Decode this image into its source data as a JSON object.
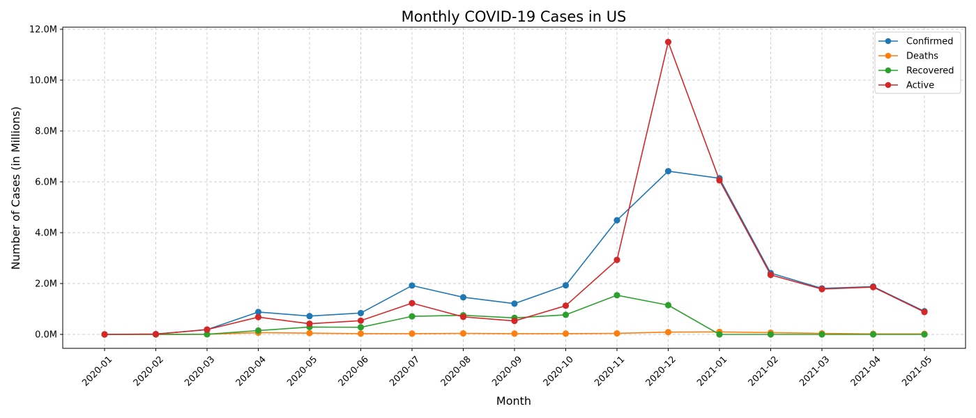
{
  "chart_data": {
    "type": "line",
    "title": "Monthly COVID-19 Cases in US",
    "xlabel": "Month",
    "ylabel": "Number of Cases (in Millions)",
    "categories": [
      "2020-01",
      "2020-02",
      "2020-03",
      "2020-04",
      "2020-05",
      "2020-06",
      "2020-07",
      "2020-08",
      "2020-09",
      "2020-10",
      "2020-11",
      "2020-12",
      "2021-01",
      "2021-02",
      "2021-03",
      "2021-04",
      "2021-05"
    ],
    "ylim": [
      -0.55,
      12.1
    ],
    "yticks": [
      0,
      2,
      4,
      6,
      8,
      10,
      12
    ],
    "ytick_labels": [
      "0.0M",
      "2.0M",
      "4.0M",
      "6.0M",
      "8.0M",
      "10.0M",
      "12.0M"
    ],
    "grid": true,
    "legend_position": "top-right",
    "marker": "circle",
    "series": [
      {
        "name": "Confirmed",
        "color": "#1f77b4",
        "values": [
          0.0,
          0.01,
          0.19,
          0.88,
          0.72,
          0.84,
          1.92,
          1.46,
          1.21,
          1.93,
          4.49,
          6.42,
          6.14,
          2.41,
          1.81,
          1.88,
          0.91
        ]
      },
      {
        "name": "Deaths",
        "color": "#ff7f0e",
        "values": [
          0.0,
          0.0,
          0.005,
          0.07,
          0.05,
          0.03,
          0.03,
          0.04,
          0.03,
          0.03,
          0.04,
          0.09,
          0.1,
          0.07,
          0.04,
          0.02,
          0.02
        ]
      },
      {
        "name": "Recovered",
        "color": "#2ca02c",
        "values": [
          0.0,
          0.0,
          0.005,
          0.15,
          0.29,
          0.28,
          0.71,
          0.75,
          0.65,
          0.77,
          1.54,
          1.15,
          0.0,
          0.0,
          0.0,
          0.0,
          0.0
        ]
      },
      {
        "name": "Active",
        "color": "#d62728",
        "values": [
          0.0,
          0.01,
          0.19,
          0.68,
          0.42,
          0.54,
          1.23,
          0.69,
          0.53,
          1.13,
          2.93,
          11.5,
          6.06,
          2.34,
          1.78,
          1.86,
          0.88
        ]
      }
    ]
  }
}
